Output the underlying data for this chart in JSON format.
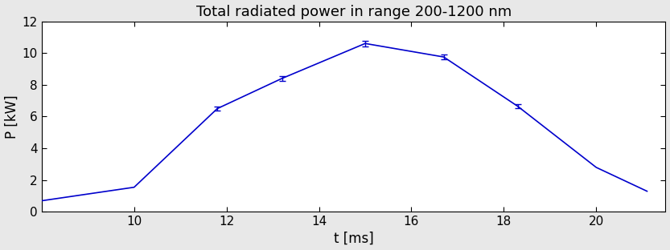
{
  "title": "Total radiated power in range 200-1200 nm",
  "xlabel": "t [ms]",
  "ylabel": "P [kW]",
  "x": [
    8.0,
    10.0,
    11.8,
    13.2,
    15.0,
    16.7,
    18.3,
    20.0,
    21.1
  ],
  "y": [
    0.7,
    1.55,
    6.5,
    8.4,
    10.6,
    9.75,
    6.65,
    2.8,
    1.3
  ],
  "yerr": [
    0.0,
    0.0,
    0.12,
    0.15,
    0.18,
    0.15,
    0.12,
    0.0,
    0.0
  ],
  "line_color": "#0000cc",
  "xlim": [
    8.0,
    21.5
  ],
  "ylim": [
    0,
    12
  ],
  "xticks": [
    10,
    12,
    14,
    16,
    18,
    20
  ],
  "yticks": [
    0,
    2,
    4,
    6,
    8,
    10,
    12
  ],
  "background_color": "#ffffff",
  "fig_background_color": "#e8e8e8",
  "title_fontsize": 13,
  "label_fontsize": 12,
  "tick_fontsize": 11
}
